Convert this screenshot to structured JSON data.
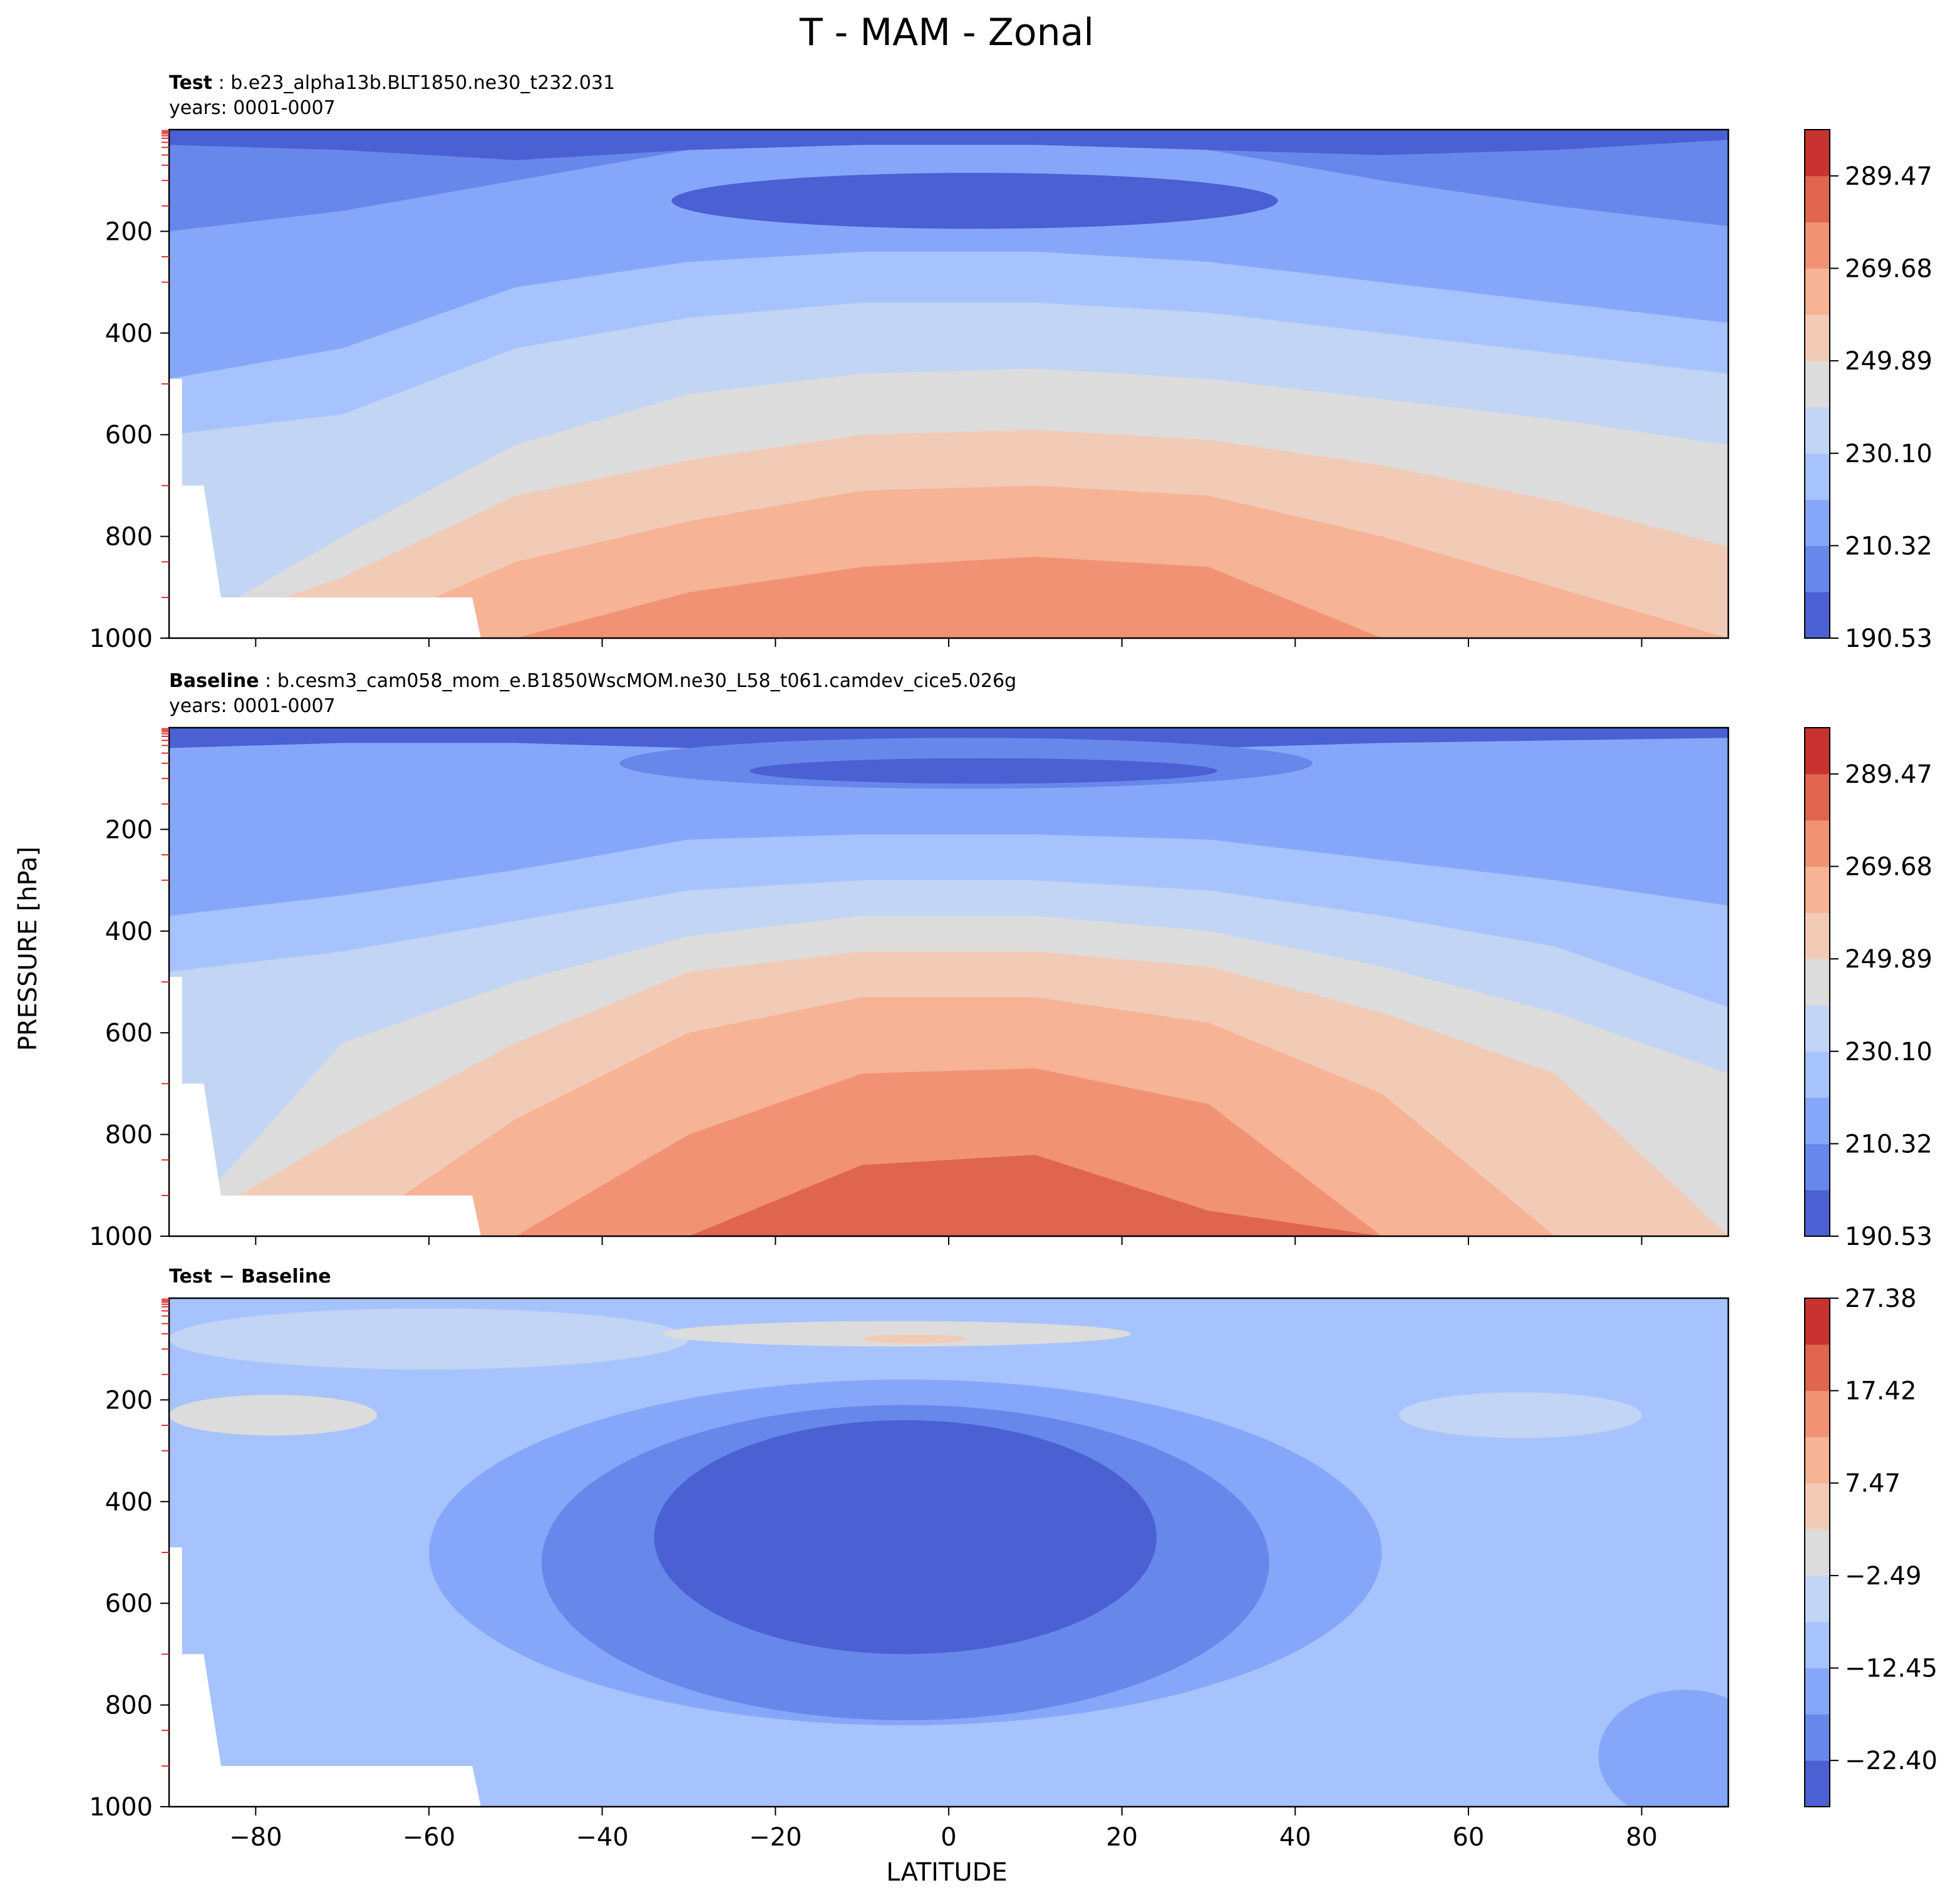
{
  "figure": {
    "title": "T - MAM - Zonal",
    "xlabel": "LATITUDE",
    "ylabel": "PRESSURE [hPa]"
  },
  "chart_data": [
    {
      "type": "contourf",
      "panel": "test",
      "title_bold": "Test",
      "title_rest": " : b.e23_alpha13b.BLT1850.ne30_t232.031",
      "subtitle": "years: 0001-0007",
      "xlabel": "LATITUDE",
      "ylabel": "PRESSURE [hPa]",
      "xlim": [
        -90,
        90
      ],
      "ylim": [
        1000,
        0
      ],
      "x_ticks": [
        -80,
        -60,
        -40,
        -20,
        0,
        20,
        40,
        60,
        80
      ],
      "x_tick_labels": [
        "−80",
        "−60",
        "−40",
        "−20",
        "0",
        "20",
        "40",
        "60",
        "80"
      ],
      "y_ticks": [
        200,
        400,
        600,
        800,
        1000
      ],
      "y_tick_labels": [
        "200",
        "400",
        "600",
        "800",
        "1000"
      ],
      "colormap": "coolwarm",
      "colors": [
        "#4a60d3",
        "#6788ea",
        "#86a7f9",
        "#a6c3fd",
        "#c3d5f4",
        "#dcdcdc",
        "#f2cbb7",
        "#f6b396",
        "#f29274",
        "#e0654f",
        "#c83332"
      ],
      "levels": [
        190.53,
        200.43,
        210.32,
        220.21,
        230.1,
        240.0,
        249.89,
        259.79,
        269.68,
        279.58,
        289.47,
        299.37
      ],
      "colorbar_ticks": [
        190.53,
        210.32,
        230.1,
        249.89,
        269.68,
        289.47
      ],
      "colorbar_tick_labels": [
        "190.53",
        "210.32",
        "230.10",
        "249.89",
        "269.68",
        "289.47"
      ],
      "band_tops": [
        {
          "level_index": 1,
          "lat": [
            -90,
            -70,
            -50,
            -30,
            -10,
            10,
            30,
            50,
            70,
            90
          ],
          "p": [
            30,
            40,
            60,
            40,
            30,
            30,
            40,
            50,
            40,
            20
          ]
        },
        {
          "level_index": 2,
          "lat": [
            -90,
            -70,
            -50,
            -30,
            -10,
            10,
            30,
            50,
            70,
            90
          ],
          "p": [
            200,
            160,
            100,
            40,
            30,
            30,
            40,
            100,
            150,
            190
          ]
        },
        {
          "level_index": 3,
          "lat": [
            -90,
            -70,
            -50,
            -30,
            -10,
            10,
            30,
            50,
            70,
            90
          ],
          "p": [
            490,
            430,
            310,
            260,
            240,
            240,
            260,
            300,
            340,
            380
          ]
        },
        {
          "level_index": 4,
          "lat": [
            -90,
            -70,
            -50,
            -30,
            -10,
            10,
            30,
            50,
            70,
            90
          ],
          "p": [
            600,
            560,
            430,
            370,
            340,
            340,
            360,
            400,
            440,
            480
          ]
        },
        {
          "level_index": 5,
          "lat": [
            -90,
            -70,
            -50,
            -30,
            -10,
            10,
            30,
            50,
            70,
            90
          ],
          "p": [
            1000,
            800,
            620,
            520,
            480,
            470,
            490,
            530,
            570,
            620
          ]
        },
        {
          "level_index": 6,
          "lat": [
            -90,
            -70,
            -50,
            -30,
            -10,
            10,
            30,
            50,
            70,
            90
          ],
          "p": [
            1000,
            880,
            720,
            650,
            600,
            590,
            610,
            660,
            730,
            820
          ]
        },
        {
          "level_index": 7,
          "lat": [
            -90,
            -70,
            -50,
            -30,
            -10,
            10,
            30,
            50,
            70,
            90
          ],
          "p": [
            1000,
            1000,
            850,
            770,
            710,
            700,
            720,
            800,
            900,
            1000
          ]
        },
        {
          "level_index": 8,
          "lat": [
            -90,
            -70,
            -50,
            -30,
            -10,
            10,
            30,
            50,
            70,
            90
          ],
          "p": [
            1000,
            1000,
            1000,
            910,
            860,
            840,
            860,
            1000,
            1000,
            1000
          ]
        }
      ],
      "blobs": [
        {
          "level_index": 0,
          "lat_center": 3,
          "p_center": 140,
          "lat_half_width": 35,
          "p_half_height": 55
        }
      ]
    },
    {
      "type": "contourf",
      "panel": "baseline",
      "title_bold": "Baseline",
      "title_rest": " : b.cesm3_cam058_mom_e.B1850WscMOM.ne30_L58_t061.camdev_cice5.026g",
      "subtitle": "years: 0001-0007",
      "xlabel": "LATITUDE",
      "ylabel": "PRESSURE [hPa]",
      "xlim": [
        -90,
        90
      ],
      "ylim": [
        1000,
        0
      ],
      "x_ticks": [
        -80,
        -60,
        -40,
        -20,
        0,
        20,
        40,
        60,
        80
      ],
      "x_tick_labels": [
        "−80",
        "−60",
        "−40",
        "−20",
        "0",
        "20",
        "40",
        "60",
        "80"
      ],
      "y_ticks": [
        200,
        400,
        600,
        800,
        1000
      ],
      "y_tick_labels": [
        "200",
        "400",
        "600",
        "800",
        "1000"
      ],
      "colormap": "coolwarm",
      "colors": [
        "#4a60d3",
        "#6788ea",
        "#86a7f9",
        "#a6c3fd",
        "#c3d5f4",
        "#dcdcdc",
        "#f2cbb7",
        "#f6b396",
        "#f29274",
        "#e0654f",
        "#c83332"
      ],
      "levels": [
        190.53,
        200.43,
        210.32,
        220.21,
        230.1,
        240.0,
        249.89,
        259.79,
        269.68,
        279.58,
        289.47,
        299.37
      ],
      "colorbar_ticks": [
        190.53,
        210.32,
        230.1,
        249.89,
        269.68,
        289.47
      ],
      "colorbar_tick_labels": [
        "190.53",
        "210.32",
        "230.10",
        "249.89",
        "269.68",
        "289.47"
      ],
      "band_tops": [
        {
          "level_index": 2,
          "lat": [
            -90,
            -70,
            -50,
            -30,
            -10,
            10,
            30,
            50,
            70,
            90
          ],
          "p": [
            40,
            30,
            30,
            40,
            35,
            35,
            40,
            30,
            25,
            20
          ]
        },
        {
          "level_index": 3,
          "lat": [
            -90,
            -70,
            -50,
            -30,
            -10,
            10,
            30,
            50,
            70,
            90
          ],
          "p": [
            370,
            330,
            280,
            220,
            210,
            210,
            220,
            260,
            300,
            350
          ]
        },
        {
          "level_index": 4,
          "lat": [
            -90,
            -70,
            -50,
            -30,
            -10,
            10,
            30,
            50,
            70,
            90
          ],
          "p": [
            480,
            440,
            380,
            320,
            300,
            300,
            320,
            370,
            430,
            550
          ]
        },
        {
          "level_index": 5,
          "lat": [
            -90,
            -70,
            -50,
            -30,
            -10,
            10,
            30,
            50,
            70,
            90
          ],
          "p": [
            1000,
            620,
            500,
            410,
            370,
            370,
            400,
            470,
            560,
            680
          ]
        },
        {
          "level_index": 6,
          "lat": [
            -90,
            -70,
            -50,
            -30,
            -10,
            10,
            30,
            50,
            70,
            90
          ],
          "p": [
            1000,
            800,
            620,
            480,
            440,
            440,
            470,
            560,
            680,
            1000
          ]
        },
        {
          "level_index": 7,
          "lat": [
            -90,
            -70,
            -50,
            -30,
            -10,
            10,
            30,
            50,
            70,
            90
          ],
          "p": [
            1000,
            1000,
            770,
            600,
            530,
            530,
            580,
            720,
            1000,
            1000
          ]
        },
        {
          "level_index": 8,
          "lat": [
            -90,
            -70,
            -50,
            -30,
            -10,
            10,
            30,
            50,
            70,
            90
          ],
          "p": [
            1000,
            1000,
            1000,
            800,
            680,
            670,
            740,
            1000,
            1000,
            1000
          ]
        },
        {
          "level_index": 9,
          "lat": [
            -90,
            -70,
            -50,
            -30,
            -10,
            10,
            30,
            50,
            70,
            90
          ],
          "p": [
            1000,
            1000,
            1000,
            1000,
            860,
            840,
            950,
            1000,
            1000,
            1000
          ]
        }
      ],
      "blobs": [
        {
          "level_index": 1,
          "lat_center": 2,
          "p_center": 70,
          "lat_half_width": 40,
          "p_half_height": 50
        },
        {
          "level_index": 0,
          "lat_center": 4,
          "p_center": 85,
          "lat_half_width": 27,
          "p_half_height": 25
        }
      ]
    },
    {
      "type": "contourf",
      "panel": "difference",
      "title_bold": "Test − Baseline",
      "title_rest": "",
      "subtitle": "",
      "xlabel": "LATITUDE",
      "ylabel": "PRESSURE [hPa]",
      "xlim": [
        -90,
        90
      ],
      "ylim": [
        1000,
        0
      ],
      "x_ticks": [
        -80,
        -60,
        -40,
        -20,
        0,
        20,
        40,
        60,
        80
      ],
      "x_tick_labels": [
        "−80",
        "−60",
        "−40",
        "−20",
        "0",
        "20",
        "40",
        "60",
        "80"
      ],
      "y_ticks": [
        200,
        400,
        600,
        800,
        1000
      ],
      "y_tick_labels": [
        "200",
        "400",
        "600",
        "800",
        "1000"
      ],
      "colormap": "coolwarm",
      "colors": [
        "#4a60d3",
        "#6788ea",
        "#86a7f9",
        "#a6c3fd",
        "#c3d5f4",
        "#dcdcdc",
        "#f2cbb7",
        "#f6b396",
        "#f29274",
        "#e0654f",
        "#c83332"
      ],
      "levels": [
        -27.38,
        -22.4,
        -17.42,
        -12.45,
        -7.47,
        -2.49,
        2.49,
        7.47,
        12.45,
        17.42,
        22.4,
        27.38
      ],
      "colorbar_ticks": [
        27.38,
        17.42,
        7.47,
        -2.49,
        -12.45,
        -22.4
      ],
      "colorbar_tick_labels": [
        "27.38",
        "17.42",
        "7.47",
        "−2.49",
        "−12.45",
        "−22.40"
      ],
      "base_level_index": 3,
      "blobs": [
        {
          "level_index": 4,
          "lat_center": -60,
          "p_center": 80,
          "lat_half_width": 30,
          "p_half_height": 60
        },
        {
          "level_index": 5,
          "lat_center": -78,
          "p_center": 230,
          "lat_half_width": 12,
          "p_half_height": 40
        },
        {
          "level_index": 4,
          "lat_center": 66,
          "p_center": 230,
          "lat_half_width": 14,
          "p_half_height": 45
        },
        {
          "level_index": 2,
          "lat_center": -5,
          "p_center": 500,
          "lat_half_width": 55,
          "p_half_height": 340
        },
        {
          "level_index": 2,
          "lat_center": 85,
          "p_center": 900,
          "lat_half_width": 10,
          "p_half_height": 130
        },
        {
          "level_index": 1,
          "lat_center": -5,
          "p_center": 520,
          "lat_half_width": 42,
          "p_half_height": 310
        },
        {
          "level_index": 0,
          "lat_center": -5,
          "p_center": 470,
          "lat_half_width": 29,
          "p_half_height": 230
        },
        {
          "level_index": 5,
          "lat_center": -6,
          "p_center": 70,
          "lat_half_width": 27,
          "p_half_height": 25
        },
        {
          "level_index": 6,
          "lat_center": -4,
          "p_center": 80,
          "lat_half_width": 6,
          "p_half_height": 9
        }
      ]
    }
  ]
}
